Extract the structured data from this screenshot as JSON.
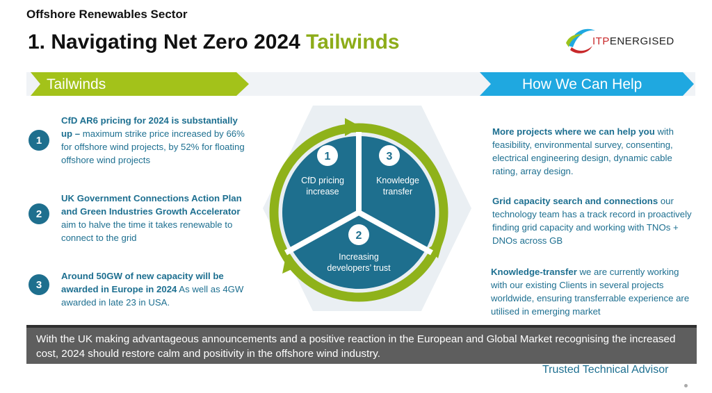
{
  "header": {
    "sector": "Offshore Renewables Sector",
    "title_main": "1. Navigating Net Zero 2024 ",
    "title_accent": "Tailwinds",
    "logo_left": "ITP",
    "logo_right": "ENERGISED"
  },
  "banner": {
    "left_label": "Tailwinds",
    "right_label": "How We Can Help",
    "green": "#a3c21a",
    "blue": "#1fa8e0"
  },
  "tailwinds": [
    {
      "number": "1",
      "bold": "CfD AR6 pricing for 2024 is substantially up –",
      "text": " maximum strike price increased by 66% for offshore wind projects, by 52% for floating offshore wind projects"
    },
    {
      "number": "2",
      "bold": "UK Government Connections Action Plan and Green Industries Growth Accelerator",
      "text": " aim to halve the time it takes renewable to connect to the grid"
    },
    {
      "number": "3",
      "bold": "Around 50GW of new capacity will be awarded in Europe in 2024",
      "text": " As well as 4GW awarded in late 23 in USA."
    }
  ],
  "cycle": {
    "segments": [
      {
        "number": "1",
        "line1": "CfD pricing",
        "line2": "increase"
      },
      {
        "number": "3",
        "line1": "Knowledge",
        "line2": "transfer"
      },
      {
        "number": "2",
        "line1": "Increasing",
        "line2": "developers’ trust"
      }
    ],
    "fill": "#1e6f8e",
    "arrow": "#8fb21a",
    "hex": "#eaeff3"
  },
  "help": [
    {
      "bold": "More projects where we can help you",
      "text": "  with feasibility, environmental survey, consenting, electrical engineering design, dynamic cable rating, array design."
    },
    {
      "bold": "Grid capacity search and connections",
      "text": " our technology team has a track record in proactively finding grid capacity and working with TNOs + DNOs across GB"
    },
    {
      "bold": "Knowledge-transfer",
      "text": " we are currently working with our existing Clients in several projects worldwide, ensuring transferrable experience are utilised in emerging market"
    }
  ],
  "footer": {
    "text": "With the UK making advantageous announcements and a positive reaction in the European and Global Market recognising the increased cost, 2024 should restore calm and positivity in the offshore wind industry.",
    "advisor": "Trusted Technical Advisor"
  }
}
